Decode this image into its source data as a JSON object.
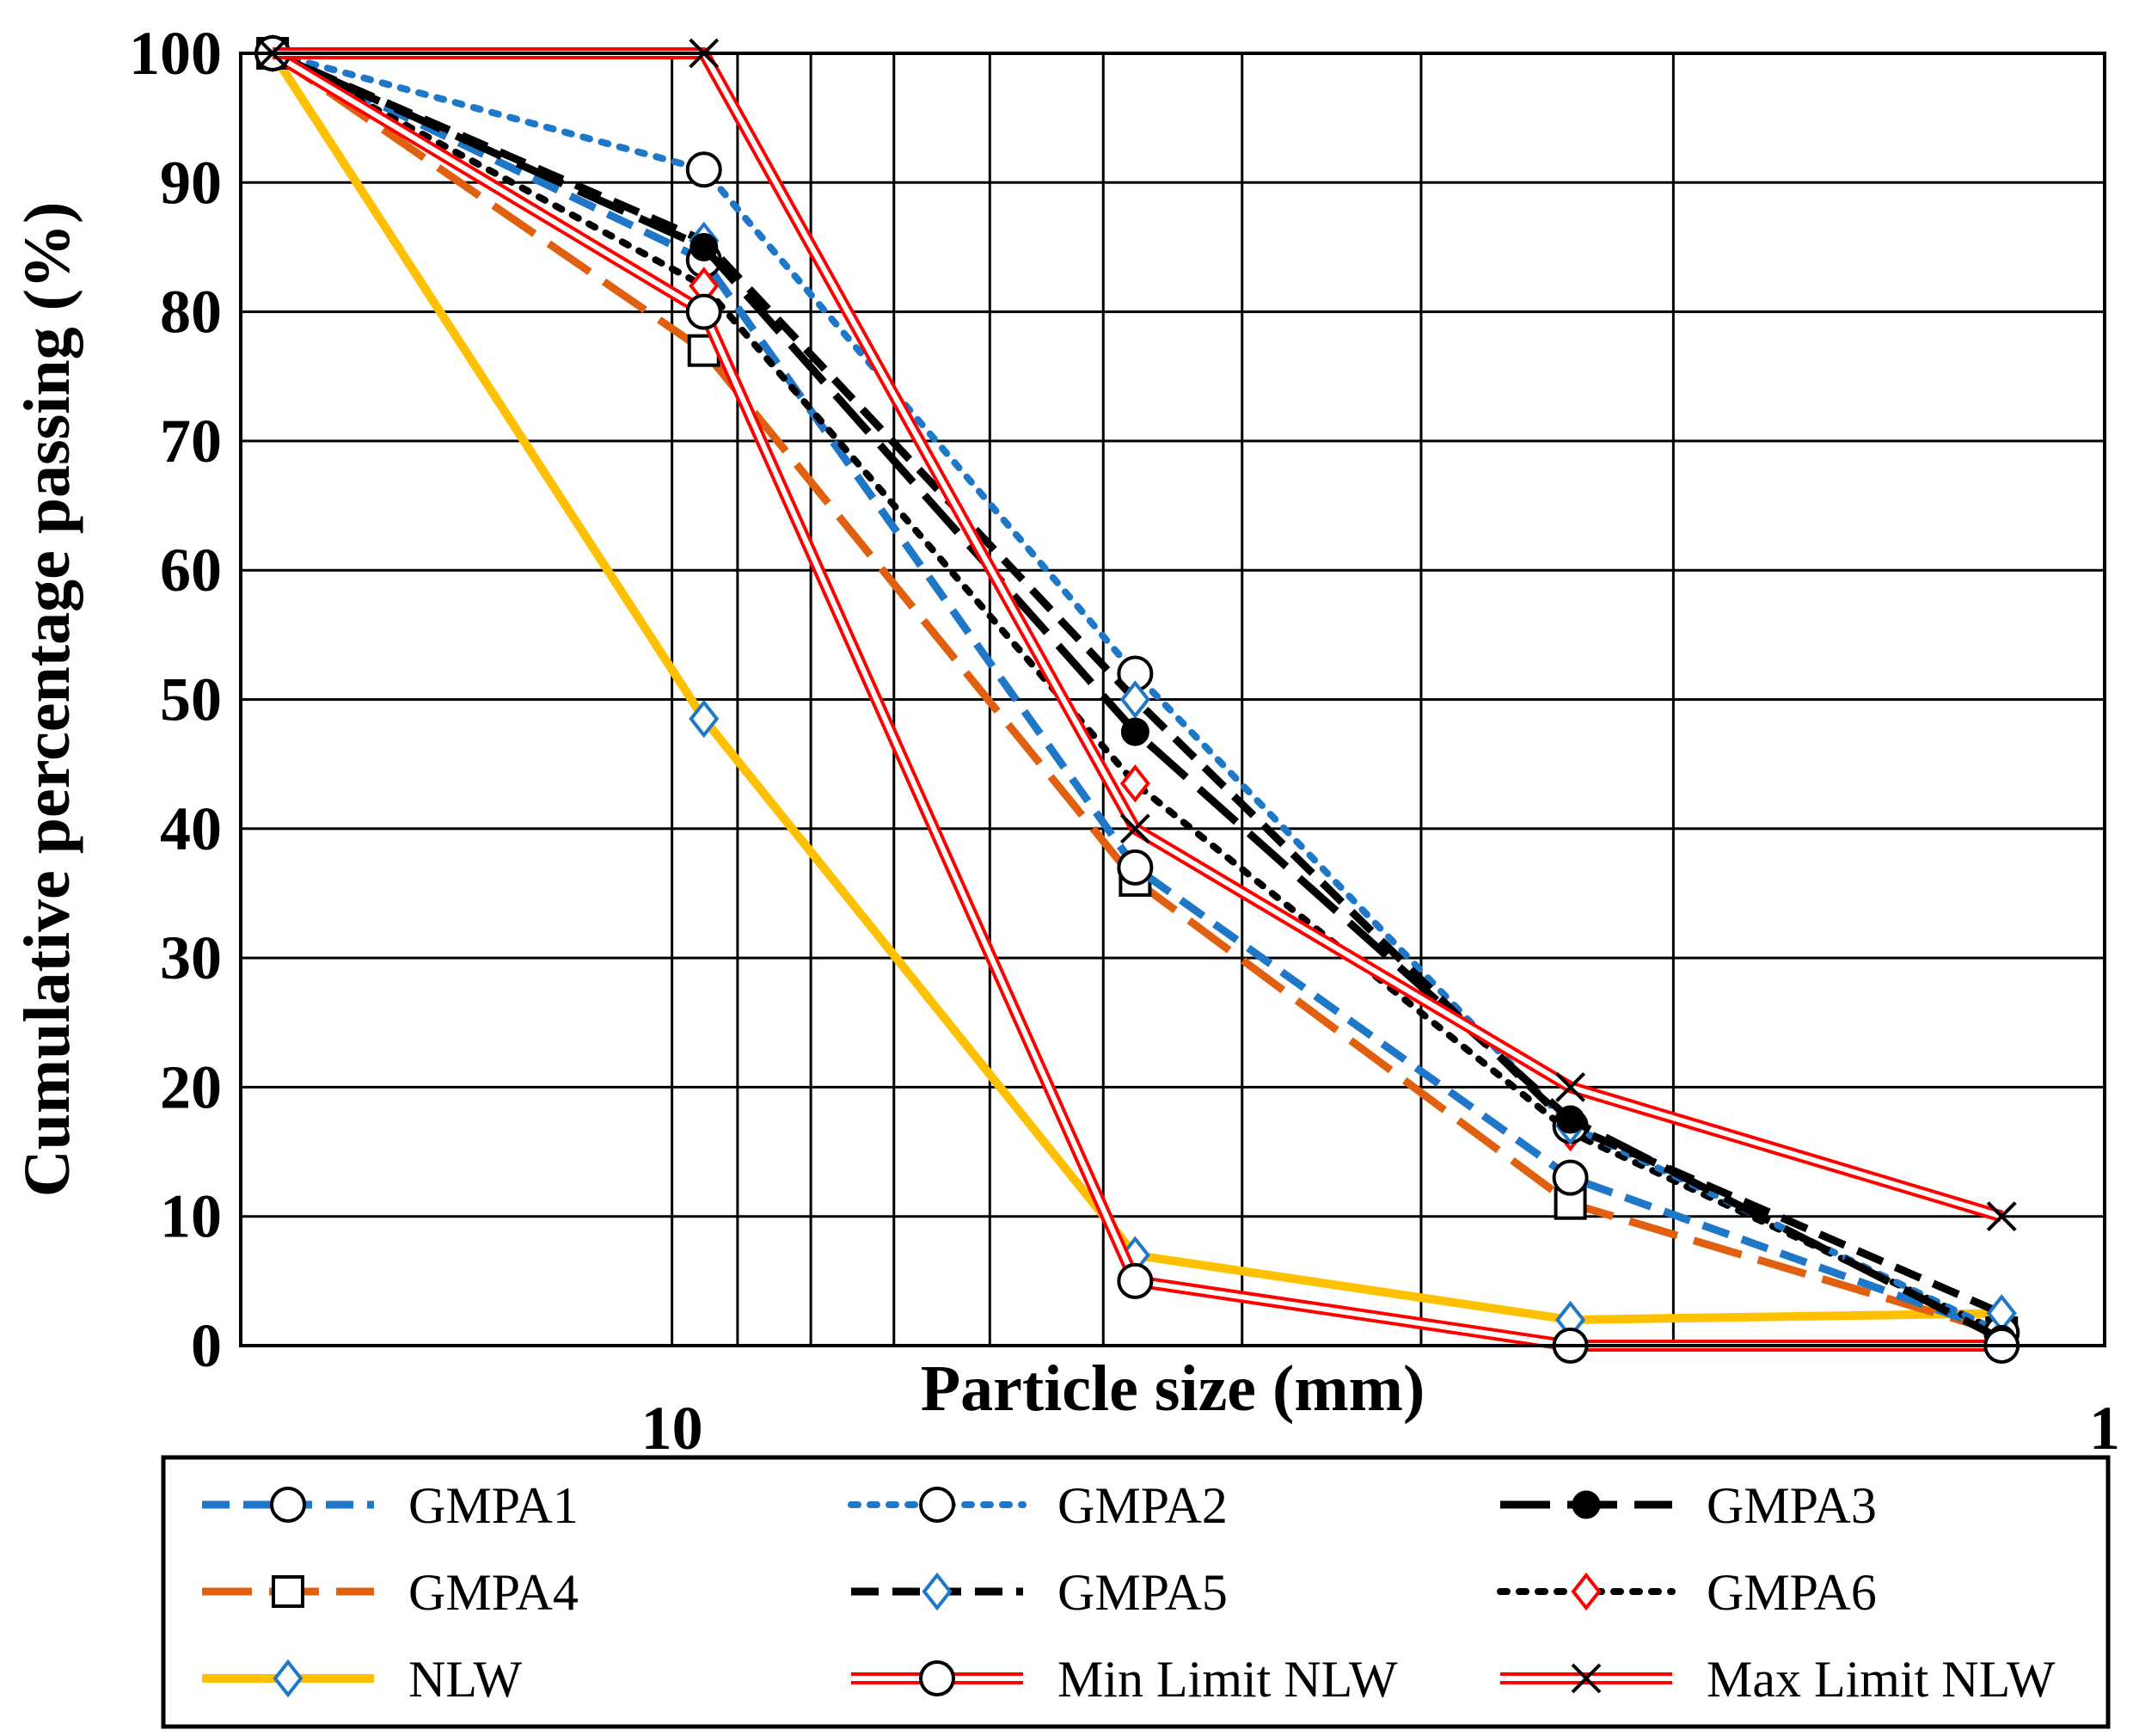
{
  "chart_data": {
    "type": "line",
    "x_scale": "log",
    "x_reversed": true,
    "xlabel": "Particle size (mm)",
    "ylabel": "Cumulative percentage passing (%)",
    "xlim": [
      20,
      1
    ],
    "ylim": [
      0,
      100
    ],
    "x_ticks": [
      {
        "value": 10,
        "label": "10"
      },
      {
        "value": 1,
        "label": "1"
      }
    ],
    "y_ticks": [
      0,
      10,
      20,
      30,
      40,
      50,
      60,
      70,
      80,
      90,
      100
    ],
    "x_gridlines": [
      10,
      9,
      8,
      7,
      6,
      5,
      4,
      3,
      2
    ],
    "grid": true,
    "legend_position": "bottom",
    "legend_columns": 3,
    "x": [
      19,
      9.5,
      4.75,
      2.36,
      1.18
    ],
    "series": [
      {
        "name": "GMPA1",
        "values": [
          100,
          84,
          37,
          13,
          1
        ],
        "color": "#1f77c8",
        "dash": "dash",
        "marker": "circle"
      },
      {
        "name": "GMPA2",
        "values": [
          100,
          91,
          52,
          17,
          1
        ],
        "color": "#1f77c8",
        "dash": "dot",
        "marker": "circle"
      },
      {
        "name": "GMPA3",
        "values": [
          100,
          85,
          47.5,
          17.5,
          0.5
        ],
        "color": "#000000",
        "dash": "longdash",
        "marker": "filled-circle"
      },
      {
        "name": "GMPA4",
        "values": [
          100,
          77,
          36,
          11,
          1
        ],
        "color": "#e06010",
        "dash": "longdash",
        "marker": "square"
      },
      {
        "name": "GMPA5",
        "values": [
          100,
          85.5,
          50,
          17,
          2.5
        ],
        "color": "#000000",
        "dash": "dash",
        "marker": "diamond-blue"
      },
      {
        "name": "GMPA6",
        "values": [
          100,
          82,
          43.5,
          16.5,
          1
        ],
        "color": "#000000",
        "dash": "dot",
        "marker": "diamond-red"
      },
      {
        "name": "NLW",
        "values": [
          100,
          48.5,
          7,
          2,
          2.5
        ],
        "color": "#ffc000",
        "dash": "solid",
        "marker": "diamond-blue"
      },
      {
        "name": "Min Limit NLW",
        "values": [
          100,
          80,
          5,
          0,
          0
        ],
        "color": "#ff0000",
        "dash": "double",
        "marker": "circle"
      },
      {
        "name": "Max Limit NLW",
        "values": [
          100,
          100,
          40,
          20,
          10
        ],
        "color": "#ff0000",
        "dash": "double",
        "marker": "x"
      }
    ]
  }
}
